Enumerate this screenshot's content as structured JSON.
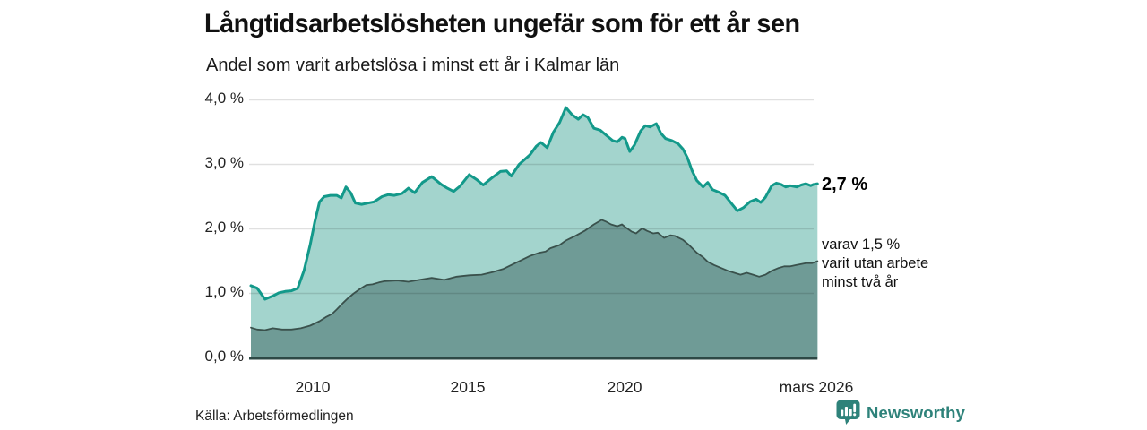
{
  "title": "Långtidsarbetslösheten ungefär som för ett år sen",
  "subtitle": "Andel som varit arbetslösa i minst ett år i Kalmar län",
  "source": "Källa: Arbetsförmedlingen",
  "branding": {
    "name": "Newsworthy",
    "color": "#2e827a"
  },
  "annotation": {
    "lines": [
      "varav 1,5 %",
      "varit utan arbete",
      "minst två år"
    ]
  },
  "chart_data": {
    "type": "area",
    "stacked": false,
    "title": "Långtidsarbetslösheten ungefär som för ett år sen",
    "subtitle": "Andel som varit arbetslösa i minst ett år i Kalmar län",
    "region": "Kalmar län",
    "unit": "%",
    "xlim": [
      2008.0,
      2026.17
    ],
    "ylim": [
      0,
      4
    ],
    "grid": "horizontal",
    "x_ticks": [
      "2010",
      "2015",
      "2020",
      "mars 2026"
    ],
    "x_tick_positions": [
      2010,
      2015,
      2020,
      2026.17
    ],
    "y_ticks": [
      "4,0 %",
      "3,0 %",
      "2,0 %",
      "1,0 %",
      "0,0 %"
    ],
    "y_tick_values": [
      4.0,
      3.0,
      2.0,
      1.0,
      0.0
    ],
    "colors": {
      "line_primary": "#13998a",
      "fill_primary": "#a3d4cd",
      "line_secondary": "#3a514c",
      "fill_secondary": "#6f9b96",
      "baseline": "#2d4845",
      "gridline": "rgba(0,0,0,0.12)"
    },
    "series": [
      {
        "name": "Arbetslösa minst ett år",
        "end_label": "2,7 %",
        "end_value": 2.7,
        "points": [
          [
            2008.0,
            1.12
          ],
          [
            2008.2,
            1.08
          ],
          [
            2008.45,
            0.91
          ],
          [
            2008.7,
            0.96
          ],
          [
            2008.9,
            1.01
          ],
          [
            2009.1,
            1.03
          ],
          [
            2009.3,
            1.04
          ],
          [
            2009.5,
            1.08
          ],
          [
            2009.7,
            1.35
          ],
          [
            2009.9,
            1.75
          ],
          [
            2010.05,
            2.11
          ],
          [
            2010.2,
            2.42
          ],
          [
            2010.35,
            2.5
          ],
          [
            2010.55,
            2.52
          ],
          [
            2010.75,
            2.52
          ],
          [
            2010.9,
            2.48
          ],
          [
            2011.05,
            2.65
          ],
          [
            2011.2,
            2.56
          ],
          [
            2011.35,
            2.4
          ],
          [
            2011.55,
            2.38
          ],
          [
            2011.75,
            2.4
          ],
          [
            2011.95,
            2.42
          ],
          [
            2012.2,
            2.5
          ],
          [
            2012.4,
            2.53
          ],
          [
            2012.6,
            2.52
          ],
          [
            2012.85,
            2.55
          ],
          [
            2013.05,
            2.63
          ],
          [
            2013.25,
            2.56
          ],
          [
            2013.5,
            2.72
          ],
          [
            2013.8,
            2.81
          ],
          [
            2014.1,
            2.69
          ],
          [
            2014.3,
            2.63
          ],
          [
            2014.5,
            2.58
          ],
          [
            2014.7,
            2.66
          ],
          [
            2015.0,
            2.84
          ],
          [
            2015.25,
            2.76
          ],
          [
            2015.45,
            2.68
          ],
          [
            2015.7,
            2.78
          ],
          [
            2016.0,
            2.89
          ],
          [
            2016.2,
            2.9
          ],
          [
            2016.35,
            2.82
          ],
          [
            2016.6,
            3.0
          ],
          [
            2016.95,
            3.15
          ],
          [
            2017.15,
            3.28
          ],
          [
            2017.3,
            3.34
          ],
          [
            2017.5,
            3.26
          ],
          [
            2017.7,
            3.5
          ],
          [
            2017.9,
            3.65
          ],
          [
            2018.1,
            3.88
          ],
          [
            2018.3,
            3.77
          ],
          [
            2018.5,
            3.7
          ],
          [
            2018.65,
            3.77
          ],
          [
            2018.8,
            3.73
          ],
          [
            2019.0,
            3.56
          ],
          [
            2019.2,
            3.53
          ],
          [
            2019.4,
            3.45
          ],
          [
            2019.6,
            3.37
          ],
          [
            2019.75,
            3.35
          ],
          [
            2019.9,
            3.42
          ],
          [
            2020.0,
            3.4
          ],
          [
            2020.15,
            3.2
          ],
          [
            2020.3,
            3.3
          ],
          [
            2020.5,
            3.52
          ],
          [
            2020.65,
            3.6
          ],
          [
            2020.8,
            3.58
          ],
          [
            2021.0,
            3.63
          ],
          [
            2021.15,
            3.48
          ],
          [
            2021.3,
            3.4
          ],
          [
            2021.5,
            3.37
          ],
          [
            2021.7,
            3.32
          ],
          [
            2021.85,
            3.24
          ],
          [
            2022.0,
            3.1
          ],
          [
            2022.15,
            2.9
          ],
          [
            2022.3,
            2.75
          ],
          [
            2022.5,
            2.65
          ],
          [
            2022.65,
            2.72
          ],
          [
            2022.8,
            2.61
          ],
          [
            2023.0,
            2.57
          ],
          [
            2023.2,
            2.52
          ],
          [
            2023.4,
            2.4
          ],
          [
            2023.6,
            2.28
          ],
          [
            2023.8,
            2.33
          ],
          [
            2024.0,
            2.42
          ],
          [
            2024.2,
            2.46
          ],
          [
            2024.35,
            2.41
          ],
          [
            2024.5,
            2.49
          ],
          [
            2024.7,
            2.67
          ],
          [
            2024.85,
            2.71
          ],
          [
            2025.0,
            2.69
          ],
          [
            2025.15,
            2.65
          ],
          [
            2025.3,
            2.67
          ],
          [
            2025.5,
            2.65
          ],
          [
            2025.65,
            2.68
          ],
          [
            2025.8,
            2.7
          ],
          [
            2025.95,
            2.67
          ],
          [
            2026.05,
            2.69
          ],
          [
            2026.17,
            2.7
          ]
        ]
      },
      {
        "name": "Varav utan arbete minst två år",
        "end_label": "varav 1,5 % varit utan arbete minst två år",
        "end_value": 1.5,
        "points": [
          [
            2008.0,
            0.47
          ],
          [
            2008.2,
            0.44
          ],
          [
            2008.45,
            0.43
          ],
          [
            2008.7,
            0.46
          ],
          [
            2009.0,
            0.44
          ],
          [
            2009.3,
            0.44
          ],
          [
            2009.6,
            0.46
          ],
          [
            2009.9,
            0.5
          ],
          [
            2010.2,
            0.57
          ],
          [
            2010.4,
            0.63
          ],
          [
            2010.6,
            0.68
          ],
          [
            2010.75,
            0.75
          ],
          [
            2010.95,
            0.85
          ],
          [
            2011.1,
            0.92
          ],
          [
            2011.3,
            1.0
          ],
          [
            2011.5,
            1.07
          ],
          [
            2011.7,
            1.13
          ],
          [
            2011.9,
            1.14
          ],
          [
            2012.1,
            1.17
          ],
          [
            2012.3,
            1.19
          ],
          [
            2012.7,
            1.2
          ],
          [
            2013.05,
            1.18
          ],
          [
            2013.4,
            1.21
          ],
          [
            2013.8,
            1.24
          ],
          [
            2014.2,
            1.21
          ],
          [
            2014.6,
            1.26
          ],
          [
            2015.0,
            1.28
          ],
          [
            2015.4,
            1.29
          ],
          [
            2015.75,
            1.33
          ],
          [
            2016.1,
            1.38
          ],
          [
            2016.35,
            1.44
          ],
          [
            2016.65,
            1.51
          ],
          [
            2016.95,
            1.58
          ],
          [
            2017.25,
            1.63
          ],
          [
            2017.45,
            1.65
          ],
          [
            2017.6,
            1.7
          ],
          [
            2017.9,
            1.75
          ],
          [
            2018.1,
            1.82
          ],
          [
            2018.4,
            1.89
          ],
          [
            2018.7,
            1.97
          ],
          [
            2019.0,
            2.07
          ],
          [
            2019.25,
            2.14
          ],
          [
            2019.4,
            2.11
          ],
          [
            2019.55,
            2.07
          ],
          [
            2019.75,
            2.04
          ],
          [
            2019.9,
            2.07
          ],
          [
            2020.0,
            2.03
          ],
          [
            2020.2,
            1.96
          ],
          [
            2020.35,
            1.93
          ],
          [
            2020.55,
            2.01
          ],
          [
            2020.7,
            1.97
          ],
          [
            2020.9,
            1.93
          ],
          [
            2021.05,
            1.94
          ],
          [
            2021.25,
            1.86
          ],
          [
            2021.45,
            1.9
          ],
          [
            2021.6,
            1.89
          ],
          [
            2021.85,
            1.83
          ],
          [
            2022.05,
            1.75
          ],
          [
            2022.3,
            1.63
          ],
          [
            2022.5,
            1.56
          ],
          [
            2022.65,
            1.49
          ],
          [
            2022.85,
            1.44
          ],
          [
            2023.05,
            1.4
          ],
          [
            2023.3,
            1.35
          ],
          [
            2023.5,
            1.32
          ],
          [
            2023.7,
            1.29
          ],
          [
            2023.9,
            1.32
          ],
          [
            2024.1,
            1.29
          ],
          [
            2024.3,
            1.26
          ],
          [
            2024.5,
            1.29
          ],
          [
            2024.7,
            1.35
          ],
          [
            2024.9,
            1.39
          ],
          [
            2025.1,
            1.42
          ],
          [
            2025.3,
            1.42
          ],
          [
            2025.5,
            1.44
          ],
          [
            2025.8,
            1.47
          ],
          [
            2026.0,
            1.47
          ],
          [
            2026.17,
            1.5
          ]
        ]
      }
    ]
  }
}
